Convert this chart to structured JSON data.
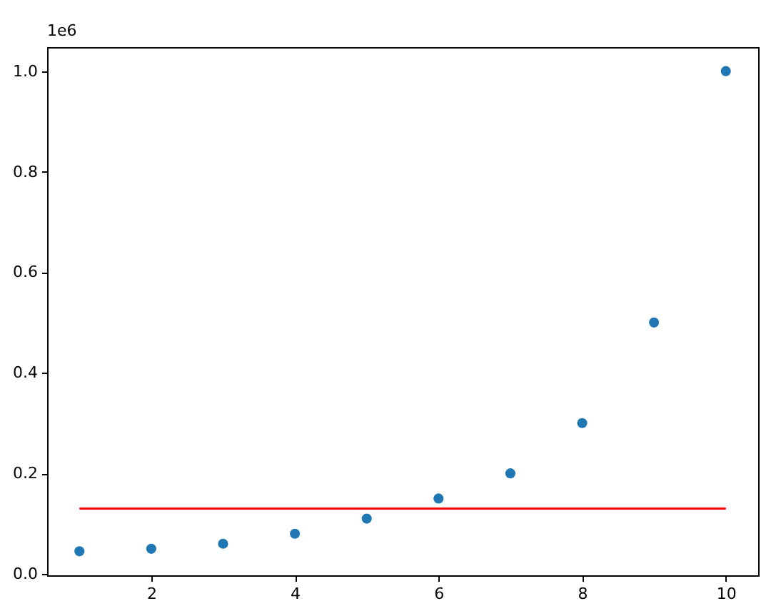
{
  "chart_data": {
    "type": "scatter",
    "x": [
      1,
      2,
      3,
      4,
      5,
      6,
      7,
      8,
      9,
      10
    ],
    "series": [
      {
        "color": "#1f77b4",
        "marker": "circle",
        "values": [
          0.045,
          0.05,
          0.06,
          0.08,
          0.11,
          0.15,
          0.2,
          0.3,
          0.5,
          1.0
        ]
      },
      {
        "type": "line",
        "color": "#ff0000",
        "line_style": "solid",
        "x": [
          1,
          10
        ],
        "values": [
          0.13,
          0.13
        ]
      }
    ],
    "xlim": [
      0.55,
      10.45
    ],
    "xticks": [
      2,
      4,
      6,
      8,
      10
    ],
    "ylim": [
      -0.00275,
      1.04775
    ],
    "yticks": [
      {
        "value": 0,
        "label": "0.0"
      },
      {
        "value": 0.2,
        "label": "0.2"
      },
      {
        "value": 0.4,
        "label": "0.4"
      },
      {
        "value": 0.6,
        "label": "0.6"
      },
      {
        "value": 0.8,
        "label": "0.8"
      },
      {
        "value": 1.0,
        "label": "1.0"
      }
    ],
    "annotations": [
      "1e6"
    ],
    "grid": false
  }
}
